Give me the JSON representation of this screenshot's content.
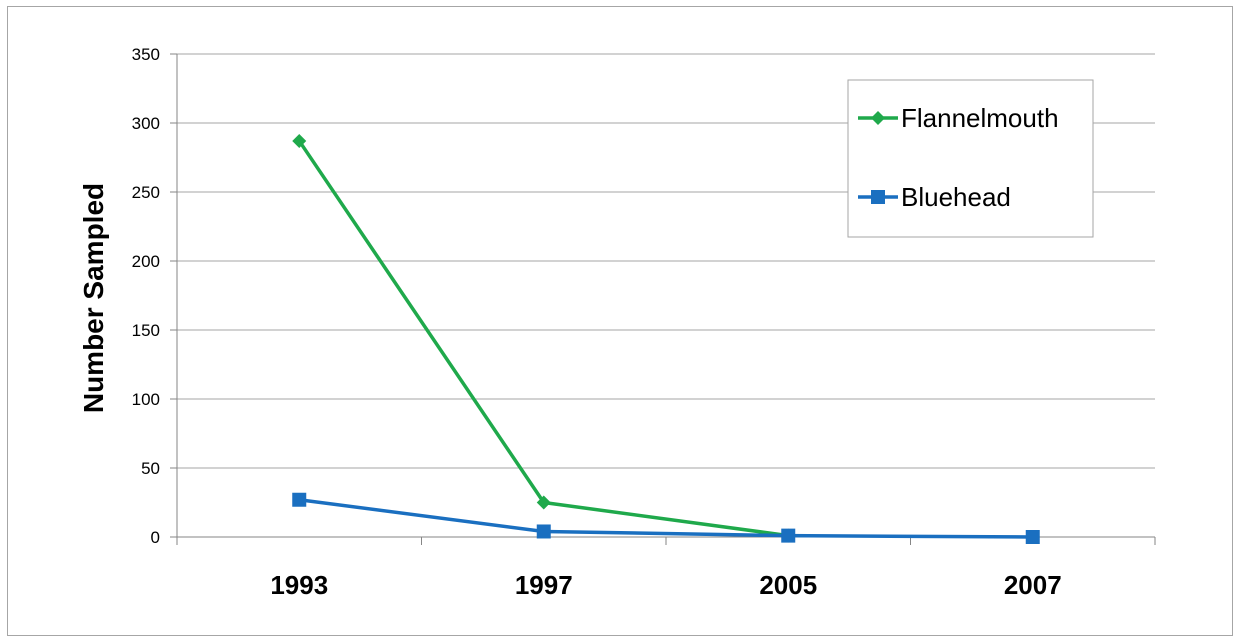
{
  "chart_data": {
    "type": "line",
    "title": "",
    "xlabel": "",
    "ylabel": "Number Sampled",
    "categories": [
      "1993",
      "1997",
      "2005",
      "2007"
    ],
    "ylim": [
      0,
      350
    ],
    "yticks": [
      0,
      50,
      100,
      150,
      200,
      250,
      300,
      350
    ],
    "grid": true,
    "legend_position": "top-right",
    "series": [
      {
        "name": "Flannelmouth",
        "color": "#1fa94b",
        "marker": "diamond",
        "values": [
          287,
          25,
          1,
          null
        ]
      },
      {
        "name": "Bluehead",
        "color": "#1a6fc0",
        "marker": "square",
        "values": [
          27,
          4,
          1,
          0
        ]
      }
    ]
  }
}
